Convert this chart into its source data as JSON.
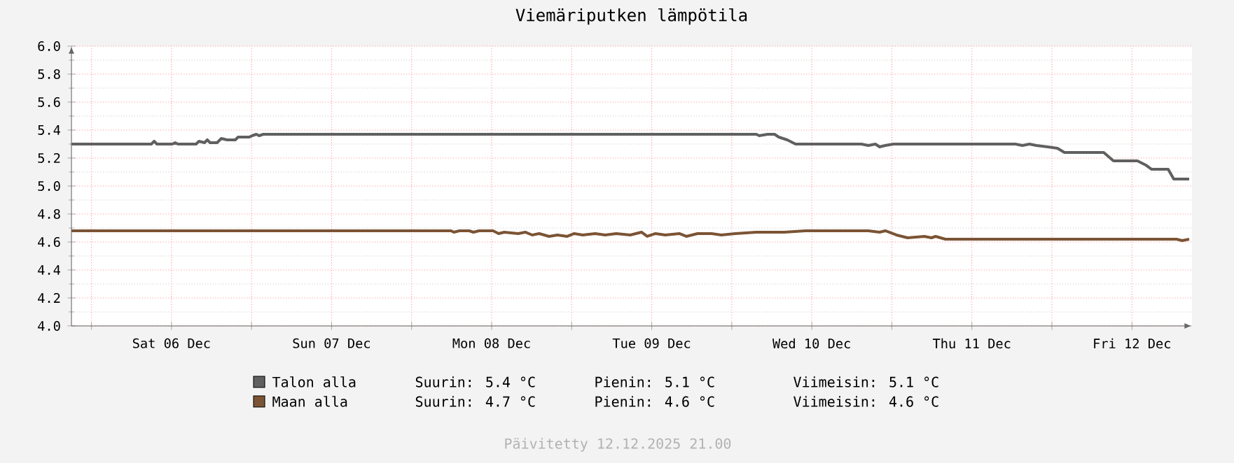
{
  "chart_data": {
    "type": "line",
    "title": "Viemäriputken lämpötila",
    "xlim": [
      "2025-12-05T21:00",
      "2025-12-12T21:00"
    ],
    "xticks": [
      {
        "value": "2025-12-06T00:00",
        "label": null
      },
      {
        "value": "2025-12-06T12:00",
        "label": "Sat 06 Dec"
      },
      {
        "value": "2025-12-07T00:00",
        "label": null
      },
      {
        "value": "2025-12-07T12:00",
        "label": "Sun 07 Dec"
      },
      {
        "value": "2025-12-08T00:00",
        "label": null
      },
      {
        "value": "2025-12-08T12:00",
        "label": "Mon 08 Dec"
      },
      {
        "value": "2025-12-09T00:00",
        "label": null
      },
      {
        "value": "2025-12-09T12:00",
        "label": "Tue 09 Dec"
      },
      {
        "value": "2025-12-10T00:00",
        "label": null
      },
      {
        "value": "2025-12-10T12:00",
        "label": "Wed 10 Dec"
      },
      {
        "value": "2025-12-11T00:00",
        "label": null
      },
      {
        "value": "2025-12-11T12:00",
        "label": "Thu 11 Dec"
      },
      {
        "value": "2025-12-12T00:00",
        "label": null
      },
      {
        "value": "2025-12-12T12:00",
        "label": "Fri 12 Dec"
      }
    ],
    "ylim": [
      4.0,
      6.0
    ],
    "yticks": [
      {
        "value": 4.0,
        "label": "4.0"
      },
      {
        "value": 4.2,
        "label": "4.2"
      },
      {
        "value": 4.4,
        "label": "4.4"
      },
      {
        "value": 4.6,
        "label": "4.6"
      },
      {
        "value": 4.8,
        "label": "4.8"
      },
      {
        "value": 5.0,
        "label": "5.0"
      },
      {
        "value": 5.2,
        "label": "5.2"
      },
      {
        "value": 5.4,
        "label": "5.4"
      },
      {
        "value": 5.6,
        "label": "5.6"
      },
      {
        "value": 5.8,
        "label": "5.8"
      },
      {
        "value": 6.0,
        "label": "6.0"
      }
    ],
    "grid": true,
    "legend": "bottom",
    "series": [
      {
        "name": "Talon alla",
        "color": "#606060",
        "x": [
          "2025-12-05T21:00",
          "2025-12-06T09:00",
          "2025-12-06T09:24",
          "2025-12-06T09:49",
          "2025-12-06T12:07",
          "2025-12-06T12:32",
          "2025-12-06T12:58",
          "2025-12-06T15:41",
          "2025-12-06T16:07",
          "2025-12-06T16:57",
          "2025-12-06T17:22",
          "2025-12-06T17:47",
          "2025-12-06T18:50",
          "2025-12-06T19:28",
          "2025-12-06T20:19",
          "2025-12-06T21:34",
          "2025-12-06T21:59",
          "2025-12-06T23:40",
          "2025-12-07T00:05",
          "2025-12-07T00:43",
          "2025-12-07T01:08",
          "2025-12-07T01:46",
          "2025-12-10T03:41",
          "2025-12-10T04:07",
          "2025-12-10T05:22",
          "2025-12-10T06:25",
          "2025-12-10T07:03",
          "2025-12-10T08:19",
          "2025-12-10T09:34",
          "2025-12-10T19:26",
          "2025-12-10T20:29",
          "2025-12-10T21:32",
          "2025-12-10T22:10",
          "2025-12-10T23:01",
          "2025-12-11T00:16",
          "2025-12-11T02:47",
          "2025-12-11T18:32",
          "2025-12-11T19:35",
          "2025-12-11T20:38",
          "2025-12-11T21:41",
          "2025-12-11T23:22",
          "2025-12-12T00:50",
          "2025-12-12T01:53",
          "2025-12-12T07:46",
          "2025-12-12T09:14",
          "2025-12-12T12:49",
          "2025-12-12T14:04",
          "2025-12-12T14:55",
          "2025-12-12T17:26",
          "2025-12-12T18:16",
          "2025-12-12T20:35"
        ],
        "values": [
          5.3,
          5.3,
          5.32,
          5.3,
          5.3,
          5.31,
          5.3,
          5.3,
          5.32,
          5.31,
          5.33,
          5.31,
          5.31,
          5.34,
          5.33,
          5.33,
          5.35,
          5.35,
          5.36,
          5.37,
          5.36,
          5.37,
          5.37,
          5.36,
          5.37,
          5.37,
          5.35,
          5.33,
          5.3,
          5.3,
          5.29,
          5.3,
          5.28,
          5.29,
          5.3,
          5.3,
          5.3,
          5.29,
          5.3,
          5.29,
          5.28,
          5.27,
          5.24,
          5.24,
          5.18,
          5.18,
          5.15,
          5.12,
          5.12,
          5.05,
          5.05
        ]
      },
      {
        "name": "Maan alla",
        "color": "#7b5435",
        "x": [
          "2025-12-05T21:00",
          "2025-12-08T05:55",
          "2025-12-08T06:20",
          "2025-12-08T07:10",
          "2025-12-08T08:38",
          "2025-12-08T09:16",
          "2025-12-08T10:07",
          "2025-12-08T12:13",
          "2025-12-08T13:03",
          "2025-12-08T13:53",
          "2025-12-08T15:59",
          "2025-12-08T17:02",
          "2025-12-08T18:05",
          "2025-12-08T19:08",
          "2025-12-08T20:37",
          "2025-12-08T21:52",
          "2025-12-08T23:20",
          "2025-12-09T00:23",
          "2025-12-09T01:39",
          "2025-12-09T03:32",
          "2025-12-09T05:01",
          "2025-12-09T06:41",
          "2025-12-09T08:47",
          "2025-12-09T10:28",
          "2025-12-09T11:19",
          "2025-12-09T12:34",
          "2025-12-09T14:02",
          "2025-12-09T16:08",
          "2025-12-09T17:11",
          "2025-12-09T18:52",
          "2025-12-09T20:58",
          "2025-12-09T22:26",
          "2025-12-10T00:32",
          "2025-12-10T03:41",
          "2025-12-10T07:53",
          "2025-12-10T11:02",
          "2025-12-10T16:17",
          "2025-12-10T20:29",
          "2025-12-10T22:10",
          "2025-12-10T23:01",
          "2025-12-11T00:41",
          "2025-12-11T02:22",
          "2025-12-11T04:53",
          "2025-12-11T05:56",
          "2025-12-11T06:34",
          "2025-12-11T08:02",
          "2025-12-12T18:41",
          "2025-12-12T19:32",
          "2025-12-12T20:35"
        ],
        "values": [
          4.68,
          4.68,
          4.67,
          4.68,
          4.68,
          4.67,
          4.68,
          4.68,
          4.66,
          4.67,
          4.66,
          4.67,
          4.65,
          4.66,
          4.64,
          4.65,
          4.64,
          4.66,
          4.65,
          4.66,
          4.65,
          4.66,
          4.65,
          4.67,
          4.64,
          4.66,
          4.65,
          4.66,
          4.64,
          4.66,
          4.66,
          4.65,
          4.66,
          4.67,
          4.67,
          4.68,
          4.68,
          4.68,
          4.67,
          4.68,
          4.65,
          4.63,
          4.64,
          4.63,
          4.64,
          4.62,
          4.62,
          4.61,
          4.62
        ]
      }
    ],
    "annotations": [
      "Suurin:   5.4 °C",
      "Pienin:   5.1 °C",
      "Viimeisin:   5.1 °C",
      "Suurin:   4.7 °C",
      "Pienin:   4.6 °C",
      "Viimeisin:   4.6 °C",
      "Päivitetty 12.12.2025 21.00"
    ]
  }
}
